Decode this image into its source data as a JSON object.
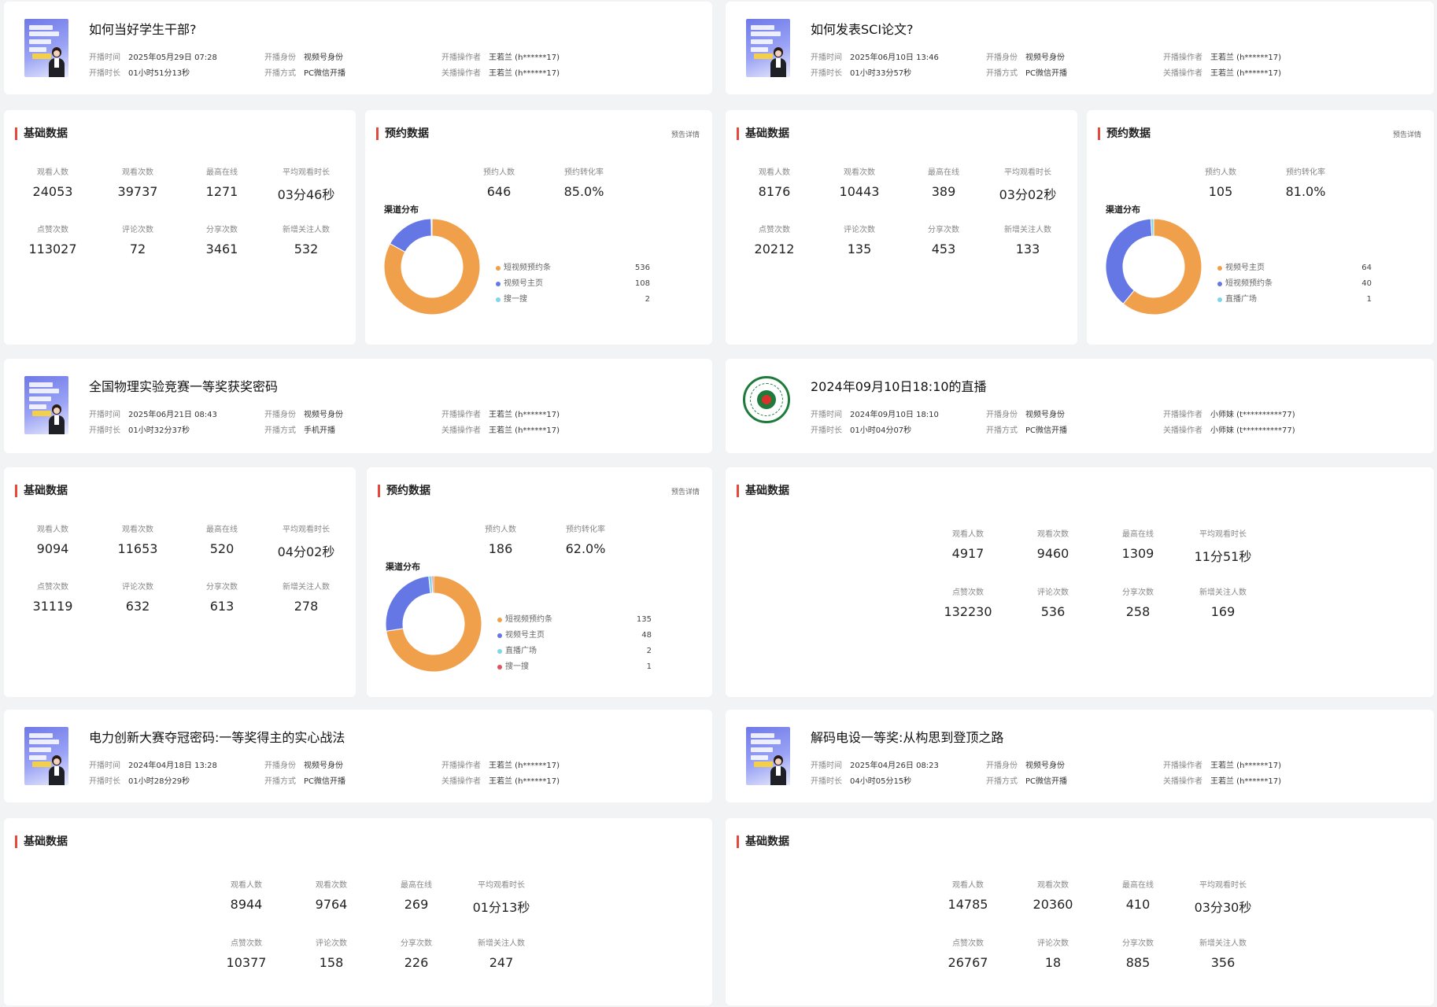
{
  "labels": {
    "start_time": "开播时间",
    "duration": "开播时长",
    "identity": "开播身份",
    "method": "开播方式",
    "start_operator": "开播操作者",
    "close_operator": "关播操作者",
    "basic_data": "基础数据",
    "reserve_data": "预约数据",
    "reserve_detail": "预告详情",
    "channel_dist": "渠道分布",
    "reserve_count": "预约人数",
    "reserve_rate": "预约转化率",
    "viewers": "观看人数",
    "views": "观看次数",
    "peak_online": "最高在线",
    "avg_watch": "平均观看时长",
    "likes": "点赞次数",
    "comments": "评论次数",
    "shares": "分享次数",
    "new_followers": "新增关注人数"
  },
  "colors": {
    "orange": "#f0a04b",
    "blue": "#6577e4",
    "cyan": "#7fd6ea",
    "red": "#e0525a"
  },
  "lives": [
    {
      "title": "如何当好学生干部?",
      "start_time": "2025年05月29日 07:28",
      "duration": "01小时51分13秒",
      "identity": "视频号身份",
      "method": "PC微信开播",
      "start_operator": "王若兰 (h******17)",
      "close_operator": "王若兰 (h******17)",
      "stats": {
        "viewers": "24053",
        "views": "39737",
        "peak_online": "1271",
        "avg_watch": "03分46秒",
        "likes": "113027",
        "comments": "72",
        "shares": "3461",
        "new_followers": "532"
      },
      "reserve": {
        "count": "646",
        "rate": "85.0%",
        "channels": [
          {
            "name": "短视频预约条",
            "value": 536,
            "value_text": "536",
            "color": "#f0a04b"
          },
          {
            "name": "视频号主页",
            "value": 108,
            "value_text": "108",
            "color": "#6577e4"
          },
          {
            "name": "搜一搜",
            "value": 2,
            "value_text": "2",
            "color": "#7fd6ea"
          }
        ]
      }
    },
    {
      "title": "如何发表SCI论文?",
      "start_time": "2025年06月10日 13:46",
      "duration": "01小时33分57秒",
      "identity": "视频号身份",
      "method": "PC微信开播",
      "start_operator": "王若兰 (h******17)",
      "close_operator": "王若兰 (h******17)",
      "stats": {
        "viewers": "8176",
        "views": "10443",
        "peak_online": "389",
        "avg_watch": "03分02秒",
        "likes": "20212",
        "comments": "135",
        "shares": "453",
        "new_followers": "133"
      },
      "reserve": {
        "count": "105",
        "rate": "81.0%",
        "channels": [
          {
            "name": "视频号主页",
            "value": 64,
            "value_text": "64",
            "color": "#f0a04b"
          },
          {
            "name": "短视频预约条",
            "value": 40,
            "value_text": "40",
            "color": "#6577e4"
          },
          {
            "name": "直播广场",
            "value": 1,
            "value_text": "1",
            "color": "#7fd6ea"
          }
        ]
      }
    },
    {
      "title": "全国物理实验竞赛一等奖获奖密码",
      "start_time": "2025年06月21日 08:43",
      "duration": "01小时32分37秒",
      "identity": "视频号身份",
      "method": "手机开播",
      "start_operator": "王若兰 (h******17)",
      "close_operator": "王若兰 (h******17)",
      "stats": {
        "viewers": "9094",
        "views": "11653",
        "peak_online": "520",
        "avg_watch": "04分02秒",
        "likes": "31119",
        "comments": "632",
        "shares": "613",
        "new_followers": "278"
      },
      "reserve": {
        "count": "186",
        "rate": "62.0%",
        "channels": [
          {
            "name": "短视频预约条",
            "value": 135,
            "value_text": "135",
            "color": "#f0a04b"
          },
          {
            "name": "视频号主页",
            "value": 48,
            "value_text": "48",
            "color": "#6577e4"
          },
          {
            "name": "直播广场",
            "value": 2,
            "value_text": "2",
            "color": "#7fd6ea"
          },
          {
            "name": "搜一搜",
            "value": 1,
            "value_text": "1",
            "color": "#e0525a"
          }
        ]
      }
    },
    {
      "title": "2024年09月10日18:10的直播",
      "start_time": "2024年09月10日 18:10",
      "duration": "01小时04分07秒",
      "identity": "视频号身份",
      "method": "PC微信开播",
      "start_operator": "小师妹 (t**********77)",
      "close_operator": "小师妹 (t**********77)",
      "stats": {
        "viewers": "4917",
        "views": "9460",
        "peak_online": "1309",
        "avg_watch": "11分51秒",
        "likes": "132230",
        "comments": "536",
        "shares": "258",
        "new_followers": "169"
      }
    },
    {
      "title": "电力创新大赛夺冠密码:一等奖得主的实心战法",
      "start_time": "2024年04月18日 13:28",
      "duration": "01小时28分29秒",
      "identity": "视频号身份",
      "method": "PC微信开播",
      "start_operator": "王若兰 (h******17)",
      "close_operator": "王若兰 (h******17)",
      "stats": {
        "viewers": "8944",
        "views": "9764",
        "peak_online": "269",
        "avg_watch": "01分13秒",
        "likes": "10377",
        "comments": "158",
        "shares": "226",
        "new_followers": "247"
      }
    },
    {
      "title": "解码电设一等奖:从构思到登顶之路",
      "start_time": "2025年04月26日 08:23",
      "duration": "04小时05分15秒",
      "identity": "视频号身份",
      "method": "PC微信开播",
      "start_operator": "王若兰 (h******17)",
      "close_operator": "王若兰 (h******17)",
      "stats": {
        "viewers": "14785",
        "views": "20360",
        "peak_online": "410",
        "avg_watch": "03分30秒",
        "likes": "26767",
        "comments": "18",
        "shares": "885",
        "new_followers": "356"
      }
    }
  ]
}
